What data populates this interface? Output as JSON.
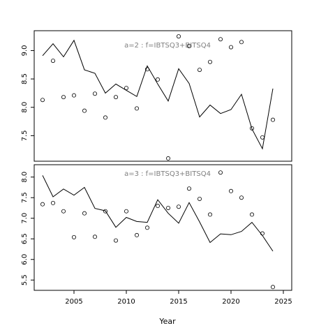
{
  "chart_data": {
    "type": "line",
    "xlabel": "Year",
    "x_ticks": [
      2005,
      2010,
      2015,
      2020,
      2025
    ],
    "xlim": [
      2001.2,
      2025.8
    ],
    "panels": [
      {
        "title": "a=2  :  f=IBTSQ3+BITSQ4",
        "ylim": [
          7.05,
          9.35
        ],
        "y_ticks": [
          "7.5",
          "8.0",
          "8.5",
          "9.0"
        ],
        "line": {
          "x": [
            2002,
            2003,
            2004,
            2005,
            2006,
            2007,
            2008,
            2009,
            2010,
            2011,
            2012,
            2013,
            2014,
            2015,
            2016,
            2017,
            2018,
            2019,
            2020,
            2021,
            2022,
            2023,
            2024
          ],
          "y": [
            8.91,
            9.12,
            8.89,
            9.18,
            8.66,
            8.6,
            8.25,
            8.41,
            8.3,
            8.19,
            8.73,
            8.41,
            8.11,
            8.68,
            8.42,
            7.83,
            8.04,
            7.89,
            7.96,
            8.23,
            7.62,
            7.27,
            8.33
          ]
        },
        "points": {
          "x": [
            2002,
            2003,
            2004,
            2005,
            2006,
            2007,
            2008,
            2009,
            2010,
            2011,
            2012,
            2013,
            2014,
            2015,
            2016,
            2017,
            2018,
            2019,
            2020,
            2021,
            2022,
            2023,
            2024
          ],
          "y": [
            8.13,
            8.82,
            8.18,
            8.21,
            7.94,
            8.24,
            7.82,
            8.18,
            8.34,
            7.98,
            8.67,
            8.49,
            7.1,
            9.25,
            9.08,
            8.66,
            8.8,
            9.2,
            9.06,
            9.15,
            7.63,
            7.47,
            7.78
          ]
        }
      },
      {
        "title": "a=3  :  f=IBTSQ3+BITSQ4",
        "ylim": [
          5.25,
          8.3
        ],
        "y_ticks": [
          "5.5",
          "6.0",
          "6.5",
          "7.0",
          "7.5",
          "8.0"
        ],
        "line": {
          "x": [
            2002,
            2003,
            2004,
            2005,
            2006,
            2007,
            2008,
            2009,
            2010,
            2011,
            2012,
            2013,
            2014,
            2015,
            2016,
            2017,
            2018,
            2019,
            2020,
            2021,
            2022,
            2023,
            2024
          ],
          "y": [
            8.04,
            7.52,
            7.71,
            7.56,
            7.75,
            7.24,
            7.18,
            6.78,
            7.02,
            6.92,
            6.9,
            7.45,
            7.12,
            6.88,
            7.38,
            6.91,
            6.41,
            6.62,
            6.6,
            6.68,
            6.9,
            6.58,
            6.2
          ]
        },
        "points": {
          "x": [
            2002,
            2003,
            2004,
            2005,
            2006,
            2007,
            2008,
            2009,
            2010,
            2011,
            2012,
            2013,
            2014,
            2015,
            2016,
            2017,
            2018,
            2019,
            2020,
            2021,
            2022,
            2023,
            2024
          ],
          "y": [
            7.34,
            7.37,
            7.17,
            6.54,
            7.12,
            6.55,
            7.17,
            6.46,
            7.17,
            6.59,
            6.77,
            7.3,
            7.25,
            7.28,
            7.72,
            7.47,
            7.09,
            8.11,
            7.66,
            7.5,
            7.09,
            6.63,
            5.33
          ]
        }
      }
    ]
  }
}
